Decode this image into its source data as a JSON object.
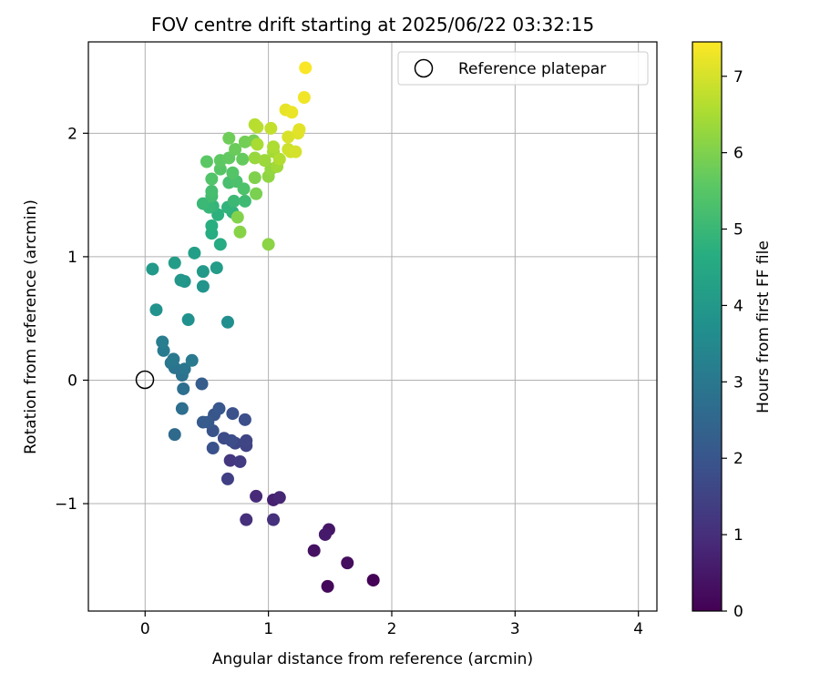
{
  "chart_data": {
    "type": "scatter",
    "title": "FOV centre drift starting at 2025/06/22 03:32:15",
    "xlabel": "Angular distance from reference (arcmin)",
    "ylabel": "Rotation from reference (arcmin)",
    "xlim": [
      -0.46,
      4.15
    ],
    "ylim": [
      -1.87,
      2.74
    ],
    "xticks": [
      0,
      1,
      2,
      3,
      4
    ],
    "xtick_labels": [
      "0",
      "1",
      "2",
      "3",
      "4"
    ],
    "yticks": [
      -1,
      0,
      1,
      2
    ],
    "ytick_labels": [
      "−1",
      "0",
      "1",
      "2"
    ],
    "grid": true,
    "legend": {
      "position": "top-right",
      "entries": [
        "Reference platepar"
      ]
    },
    "reference_point": {
      "x": 0,
      "y": 0
    },
    "colorbar": {
      "label": "Hours from first FF file",
      "range": [
        0,
        7.45
      ],
      "ticks": [
        0,
        1,
        2,
        3,
        4,
        5,
        6,
        7
      ],
      "colormap": "viridis"
    },
    "points": [
      {
        "x": 1.85,
        "y": -1.62,
        "h": 0.05
      },
      {
        "x": 1.48,
        "y": -1.67,
        "h": 0.15
      },
      {
        "x": 1.64,
        "y": -1.48,
        "h": 0.25
      },
      {
        "x": 1.37,
        "y": -1.38,
        "h": 0.35
      },
      {
        "x": 1.49,
        "y": -1.21,
        "h": 0.45
      },
      {
        "x": 1.46,
        "y": -1.25,
        "h": 0.55
      },
      {
        "x": 1.04,
        "y": -0.97,
        "h": 0.7
      },
      {
        "x": 1.09,
        "y": -0.95,
        "h": 0.8
      },
      {
        "x": 0.9,
        "y": -0.94,
        "h": 0.9
      },
      {
        "x": 0.82,
        "y": -1.13,
        "h": 1.0
      },
      {
        "x": 1.04,
        "y": -1.13,
        "h": 1.05
      },
      {
        "x": 0.69,
        "y": -0.65,
        "h": 1.2
      },
      {
        "x": 0.77,
        "y": -0.66,
        "h": 1.3
      },
      {
        "x": 0.67,
        "y": -0.8,
        "h": 1.4
      },
      {
        "x": 0.82,
        "y": -0.53,
        "h": 1.5
      },
      {
        "x": 0.82,
        "y": -0.49,
        "h": 1.55
      },
      {
        "x": 0.73,
        "y": -0.51,
        "h": 1.6
      },
      {
        "x": 0.64,
        "y": -0.47,
        "h": 1.7
      },
      {
        "x": 0.7,
        "y": -0.49,
        "h": 1.75
      },
      {
        "x": 0.81,
        "y": -0.32,
        "h": 1.8
      },
      {
        "x": 0.71,
        "y": -0.27,
        "h": 1.85
      },
      {
        "x": 0.55,
        "y": -0.55,
        "h": 1.9
      },
      {
        "x": 0.55,
        "y": -0.41,
        "h": 1.95
      },
      {
        "x": 0.56,
        "y": -0.28,
        "h": 2.0
      },
      {
        "x": 0.6,
        "y": -0.23,
        "h": 2.05
      },
      {
        "x": 0.51,
        "y": -0.34,
        "h": 2.1
      },
      {
        "x": 0.47,
        "y": -0.34,
        "h": 2.15
      },
      {
        "x": 0.46,
        "y": -0.03,
        "h": 2.2
      },
      {
        "x": 0.24,
        "y": -0.44,
        "h": 2.6
      },
      {
        "x": 0.3,
        "y": -0.23,
        "h": 2.7
      },
      {
        "x": 0.31,
        "y": -0.07,
        "h": 2.75
      },
      {
        "x": 0.3,
        "y": 0.04,
        "h": 2.8
      },
      {
        "x": 0.24,
        "y": 0.1,
        "h": 2.85
      },
      {
        "x": 0.32,
        "y": 0.09,
        "h": 2.9
      },
      {
        "x": 0.21,
        "y": 0.14,
        "h": 2.95
      },
      {
        "x": 0.23,
        "y": 0.17,
        "h": 3.0
      },
      {
        "x": 0.38,
        "y": 0.16,
        "h": 3.05
      },
      {
        "x": 0.15,
        "y": 0.24,
        "h": 3.1
      },
      {
        "x": 0.14,
        "y": 0.31,
        "h": 3.15
      },
      {
        "x": 0.67,
        "y": 0.47,
        "h": 3.7
      },
      {
        "x": 0.35,
        "y": 0.49,
        "h": 3.75
      },
      {
        "x": 0.09,
        "y": 0.57,
        "h": 3.8
      },
      {
        "x": 0.47,
        "y": 0.76,
        "h": 3.85
      },
      {
        "x": 0.32,
        "y": 0.8,
        "h": 3.9
      },
      {
        "x": 0.29,
        "y": 0.81,
        "h": 3.95
      },
      {
        "x": 0.47,
        "y": 0.88,
        "h": 4.0
      },
      {
        "x": 0.06,
        "y": 0.9,
        "h": 4.05
      },
      {
        "x": 0.58,
        "y": 0.91,
        "h": 4.1
      },
      {
        "x": 0.24,
        "y": 0.95,
        "h": 4.15
      },
      {
        "x": 0.4,
        "y": 1.03,
        "h": 4.2
      },
      {
        "x": 0.61,
        "y": 1.1,
        "h": 4.6
      },
      {
        "x": 0.54,
        "y": 1.19,
        "h": 4.65
      },
      {
        "x": 0.54,
        "y": 1.25,
        "h": 4.7
      },
      {
        "x": 0.59,
        "y": 1.34,
        "h": 4.75
      },
      {
        "x": 0.71,
        "y": 1.36,
        "h": 4.8
      },
      {
        "x": 0.67,
        "y": 1.4,
        "h": 4.85
      },
      {
        "x": 0.55,
        "y": 1.41,
        "h": 4.9
      },
      {
        "x": 0.52,
        "y": 1.4,
        "h": 4.95
      },
      {
        "x": 0.47,
        "y": 1.43,
        "h": 5.0
      },
      {
        "x": 0.72,
        "y": 1.45,
        "h": 5.05
      },
      {
        "x": 0.81,
        "y": 1.45,
        "h": 5.1
      },
      {
        "x": 0.54,
        "y": 1.49,
        "h": 5.15
      },
      {
        "x": 0.54,
        "y": 1.53,
        "h": 5.2
      },
      {
        "x": 0.68,
        "y": 1.6,
        "h": 5.25
      },
      {
        "x": 0.74,
        "y": 1.61,
        "h": 5.3
      },
      {
        "x": 0.8,
        "y": 1.55,
        "h": 5.35
      },
      {
        "x": 0.54,
        "y": 1.63,
        "h": 5.4
      },
      {
        "x": 0.71,
        "y": 1.68,
        "h": 5.45
      },
      {
        "x": 0.61,
        "y": 1.71,
        "h": 5.5
      },
      {
        "x": 0.5,
        "y": 1.77,
        "h": 5.55
      },
      {
        "x": 0.61,
        "y": 1.78,
        "h": 5.6
      },
      {
        "x": 0.68,
        "y": 1.8,
        "h": 5.65
      },
      {
        "x": 0.79,
        "y": 1.79,
        "h": 5.7
      },
      {
        "x": 0.73,
        "y": 1.87,
        "h": 5.75
      },
      {
        "x": 0.68,
        "y": 1.96,
        "h": 5.8
      },
      {
        "x": 0.81,
        "y": 1.93,
        "h": 5.85
      },
      {
        "x": 0.88,
        "y": 1.94,
        "h": 5.9
      },
      {
        "x": 0.9,
        "y": 1.51,
        "h": 5.95
      },
      {
        "x": 0.89,
        "y": 1.64,
        "h": 6.0
      },
      {
        "x": 0.75,
        "y": 1.32,
        "h": 6.05
      },
      {
        "x": 0.77,
        "y": 1.2,
        "h": 6.1
      },
      {
        "x": 1.0,
        "y": 1.1,
        "h": 6.15
      },
      {
        "x": 1.0,
        "y": 1.65,
        "h": 6.2
      },
      {
        "x": 1.02,
        "y": 1.71,
        "h": 6.25
      },
      {
        "x": 0.89,
        "y": 1.8,
        "h": 6.3
      },
      {
        "x": 0.97,
        "y": 1.78,
        "h": 6.35
      },
      {
        "x": 1.07,
        "y": 1.73,
        "h": 6.4
      },
      {
        "x": 1.04,
        "y": 1.85,
        "h": 6.45
      },
      {
        "x": 0.91,
        "y": 1.91,
        "h": 6.5
      },
      {
        "x": 1.04,
        "y": 1.89,
        "h": 6.55
      },
      {
        "x": 1.09,
        "y": 1.79,
        "h": 6.6
      },
      {
        "x": 0.89,
        "y": 2.07,
        "h": 6.65
      },
      {
        "x": 0.91,
        "y": 2.05,
        "h": 6.7
      },
      {
        "x": 1.02,
        "y": 2.04,
        "h": 6.8
      },
      {
        "x": 1.16,
        "y": 1.87,
        "h": 6.9
      },
      {
        "x": 1.18,
        "y": 1.85,
        "h": 6.95
      },
      {
        "x": 1.22,
        "y": 1.85,
        "h": 7.0
      },
      {
        "x": 1.16,
        "y": 1.97,
        "h": 7.05
      },
      {
        "x": 1.24,
        "y": 2.0,
        "h": 7.1
      },
      {
        "x": 1.25,
        "y": 2.03,
        "h": 7.15
      },
      {
        "x": 1.14,
        "y": 2.19,
        "h": 7.2
      },
      {
        "x": 1.19,
        "y": 2.17,
        "h": 7.25
      },
      {
        "x": 1.29,
        "y": 2.29,
        "h": 7.3
      },
      {
        "x": 1.3,
        "y": 2.53,
        "h": 7.4
      }
    ]
  }
}
